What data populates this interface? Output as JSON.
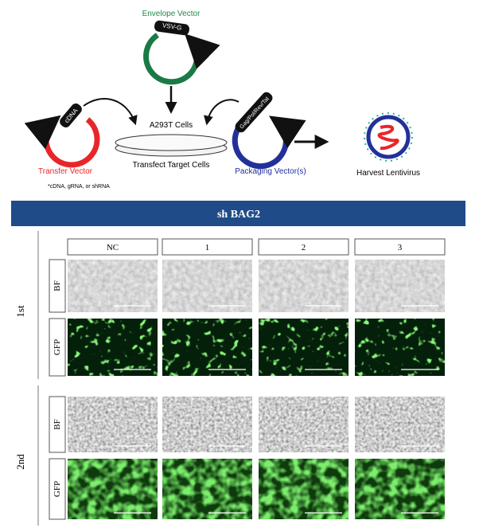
{
  "diagram": {
    "envelope_vector": "Envelope Vector",
    "envelope_gene": "VSV-G",
    "cells": "A293T Cells",
    "transfer_gene": "cDNA",
    "packaging_gene": "Gag/Pol/Rev/Tat",
    "transfer_vector": "Transfer Vector",
    "transfer_note": "*cDNA, gRNA, or shRNA",
    "transfect": "Transfect Target Cells",
    "packaging_vector": "Packaging Vector(s)",
    "harvest": "Harvest Lentivirus"
  },
  "panel": {
    "title": "sh BAG2",
    "columns": [
      "NC",
      "1",
      "2",
      "3"
    ],
    "rounds": [
      {
        "label": "1st",
        "rows": [
          "BF",
          "GFP"
        ]
      },
      {
        "label": "2nd",
        "rows": [
          "BF",
          "GFP"
        ]
      }
    ]
  }
}
